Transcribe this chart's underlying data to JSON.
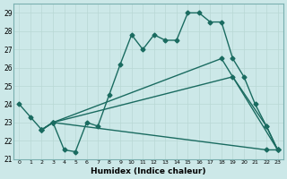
{
  "xlabel": "Humidex (Indice chaleur)",
  "bg_color": "#cce8e8",
  "line_color": "#1a6b60",
  "xlim": [
    -0.5,
    23.5
  ],
  "ylim": [
    21,
    29.5
  ],
  "yticks": [
    21,
    22,
    23,
    24,
    25,
    26,
    27,
    28,
    29
  ],
  "xticks": [
    0,
    1,
    2,
    3,
    4,
    5,
    6,
    7,
    8,
    9,
    10,
    11,
    12,
    13,
    14,
    15,
    16,
    17,
    18,
    19,
    20,
    21,
    22,
    23
  ],
  "line1_x": [
    0,
    1,
    2,
    3,
    4,
    5,
    6,
    7,
    8,
    9,
    10,
    11,
    12,
    13,
    14,
    15,
    16,
    17,
    18,
    19,
    20,
    21,
    22,
    23
  ],
  "line1_y": [
    24.0,
    23.3,
    22.6,
    23.0,
    21.5,
    21.4,
    23.0,
    22.8,
    24.5,
    26.2,
    27.8,
    27.0,
    27.8,
    27.5,
    27.5,
    29.0,
    29.0,
    28.5,
    28.5,
    26.5,
    25.5,
    24.0,
    22.8,
    21.5
  ],
  "line2_x": [
    2,
    3,
    19,
    22,
    23
  ],
  "line2_y": [
    22.6,
    23.0,
    25.5,
    22.8,
    21.5
  ],
  "line3_x": [
    2,
    3,
    22,
    23
  ],
  "line3_y": [
    22.6,
    23.0,
    21.5,
    21.5
  ],
  "line4_x": [
    2,
    3,
    18,
    23
  ],
  "line4_y": [
    22.6,
    23.0,
    26.5,
    21.5
  ],
  "grid_color": "#b8d8d4",
  "marker_size": 2.5,
  "linewidth": 1.0
}
